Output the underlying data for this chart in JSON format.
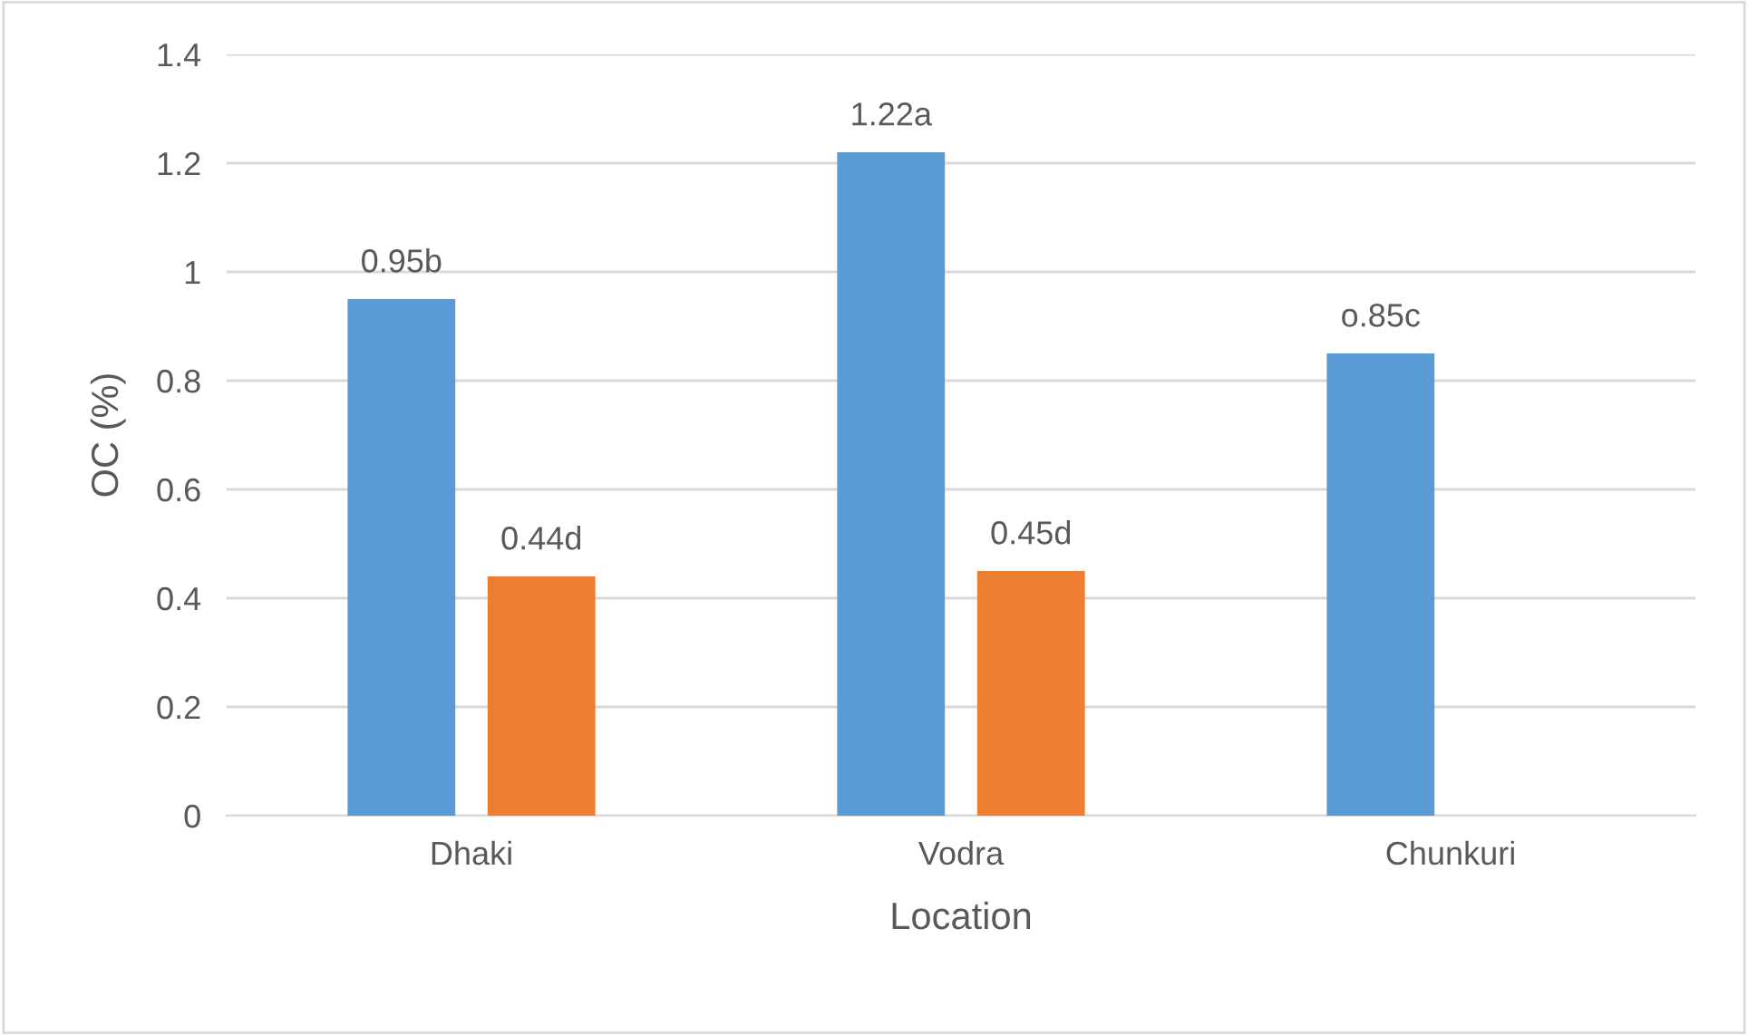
{
  "chart_data": {
    "type": "bar",
    "xlabel": "Location",
    "ylabel": "OC (%)",
    "categories": [
      "Dhaki",
      "Vodra",
      "Chunkuri"
    ],
    "series": [
      {
        "color": "#5b9bd5",
        "values": [
          0.95,
          1.22,
          0.85
        ],
        "value_labels": [
          "0.95b",
          "1.22a",
          "o.85c"
        ]
      },
      {
        "color": "#ed7d31",
        "values": [
          0.44,
          0.45,
          null
        ],
        "value_labels": [
          "0.44d",
          "0.45d",
          null
        ]
      }
    ],
    "ylim": [
      0,
      1.4
    ],
    "yticks": [
      {
        "value": 0,
        "label": "0"
      },
      0.2,
      0.4,
      0.6,
      0.8,
      {
        "value": 1,
        "label": "1"
      },
      1.2,
      1.4
    ],
    "grid": "y",
    "legend": false
  }
}
